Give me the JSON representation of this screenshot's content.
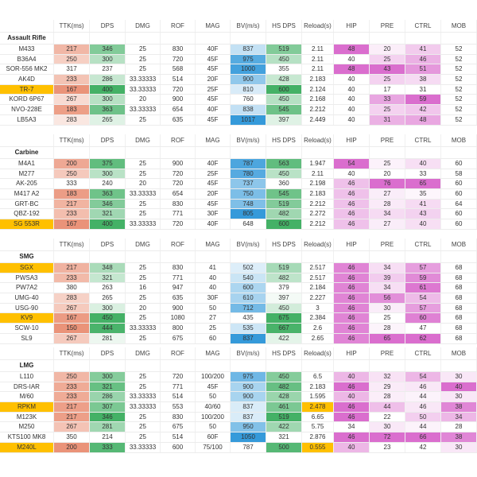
{
  "columns": [
    "TTK(ms)",
    "DPS",
    "DMG",
    "ROF",
    "MAG",
    "BV(m/s)",
    "HS DPS",
    "Reload(s)",
    "HIP",
    "PRE",
    "CTRL",
    "MOB"
  ],
  "colors": {
    "ttk": "#e8876a",
    "dps": "#2fa855",
    "bv": "#1f8fd6",
    "hs": "#2fa855",
    "stat": "#d65ec8",
    "highlight": "#ffc000"
  },
  "sections": [
    {
      "title": "Assault Rifle",
      "rows": [
        [
          "M433",
          "217",
          "346",
          "25",
          "830",
          "40F",
          "837",
          "519",
          "2.11",
          "48",
          "20",
          "41",
          "52"
        ],
        [
          "B36A4",
          "250",
          "300",
          "25",
          "720",
          "45F",
          "975",
          "450",
          "2.11",
          "40",
          "25",
          "46",
          "52"
        ],
        [
          "SOR-556 MK2",
          "317",
          "237",
          "25",
          "568",
          "45F",
          "1000",
          "355",
          "2.11",
          "48",
          "43",
          "51",
          "52"
        ],
        [
          "AK4D",
          "233",
          "286",
          "33.33333",
          "514",
          "20F",
          "900",
          "428",
          "2.183",
          "40",
          "25",
          "38",
          "52"
        ],
        [
          "TR-7",
          "167",
          "400",
          "33.33333",
          "720",
          "25F",
          "810",
          "600",
          "2.124",
          "40",
          "17",
          "31",
          "52"
        ],
        [
          "KORD 6P67",
          "267",
          "300",
          "20",
          "900",
          "45F",
          "760",
          "450",
          "2.168",
          "40",
          "33",
          "59",
          "52"
        ],
        [
          "NVO-228E",
          "183",
          "363",
          "33.33333",
          "654",
          "40F",
          "838",
          "545",
          "2.212",
          "40",
          "25",
          "42",
          "52"
        ],
        [
          "LB5A3",
          "283",
          "265",
          "25",
          "635",
          "45F",
          "1017",
          "397",
          "2.449",
          "40",
          "31",
          "48",
          "52"
        ]
      ],
      "highlighted": [
        "TR-7"
      ],
      "reload_highlighted": []
    },
    {
      "title": "Carbine",
      "rows": [
        [
          "M4A1",
          "200",
          "375",
          "25",
          "900",
          "40F",
          "787",
          "563",
          "1.947",
          "54",
          "25",
          "40",
          "60"
        ],
        [
          "M277",
          "250",
          "300",
          "25",
          "720",
          "25F",
          "780",
          "450",
          "2.11",
          "40",
          "20",
          "33",
          "58"
        ],
        [
          "AK-205",
          "333",
          "240",
          "20",
          "720",
          "45F",
          "737",
          "360",
          "2.198",
          "46",
          "76",
          "65",
          "60"
        ],
        [
          "M417 A2",
          "183",
          "363",
          "33.33333",
          "654",
          "20F",
          "750",
          "545",
          "2.183",
          "46",
          "27",
          "35",
          "60"
        ],
        [
          "GRT-BC",
          "217",
          "346",
          "25",
          "830",
          "45F",
          "748",
          "519",
          "2.212",
          "46",
          "28",
          "41",
          "64"
        ],
        [
          "QBZ-192",
          "233",
          "321",
          "25",
          "771",
          "30F",
          "805",
          "482",
          "2.272",
          "46",
          "34",
          "43",
          "60"
        ],
        [
          "SG 553R",
          "167",
          "400",
          "33.33333",
          "720",
          "40F",
          "648",
          "600",
          "2.212",
          "46",
          "27",
          "40",
          "60"
        ]
      ],
      "highlighted": [
        "SG 553R"
      ],
      "reload_highlighted": []
    },
    {
      "title": "SMG",
      "rows": [
        [
          "SGX",
          "217",
          "348",
          "25",
          "830",
          "41",
          "502",
          "519",
          "2.517",
          "46",
          "34",
          "57",
          "68"
        ],
        [
          "PWSA3",
          "233",
          "321",
          "25",
          "771",
          "40",
          "540",
          "482",
          "2.517",
          "46",
          "39",
          "59",
          "68"
        ],
        [
          "PW7A2",
          "380",
          "263",
          "16",
          "947",
          "40",
          "600",
          "379",
          "2.184",
          "46",
          "34",
          "61",
          "68"
        ],
        [
          "UMG-40",
          "283",
          "265",
          "25",
          "635",
          "30F",
          "610",
          "397",
          "2.227",
          "46",
          "56",
          "54",
          "68"
        ],
        [
          "USG-90",
          "267",
          "300",
          "20",
          "900",
          "50",
          "712",
          "450",
          "3",
          "46",
          "30",
          "57",
          "68"
        ],
        [
          "KV9",
          "167",
          "450",
          "25",
          "1080",
          "27",
          "435",
          "675",
          "2.384",
          "46",
          "25",
          "60",
          "68"
        ],
        [
          "SCW-10",
          "150",
          "444",
          "33.33333",
          "800",
          "25",
          "535",
          "667",
          "2.6",
          "46",
          "28",
          "47",
          "68"
        ],
        [
          "SL9",
          "267",
          "281",
          "25",
          "675",
          "60",
          "837",
          "422",
          "2.65",
          "46",
          "65",
          "62",
          "68"
        ]
      ],
      "highlighted": [
        "SGX",
        "KV9"
      ],
      "reload_highlighted": []
    },
    {
      "title": "LMG",
      "rows": [
        [
          "L110",
          "250",
          "300",
          "25",
          "720",
          "100/200",
          "975",
          "450",
          "6.5",
          "40",
          "32",
          "54",
          "30"
        ],
        [
          "DRS-IAR",
          "233",
          "321",
          "25",
          "771",
          "45F",
          "900",
          "482",
          "2.183",
          "46",
          "29",
          "46",
          "40"
        ],
        [
          "M/60",
          "233",
          "286",
          "33.33333",
          "514",
          "50",
          "900",
          "428",
          "1.595",
          "40",
          "28",
          "44",
          "30"
        ],
        [
          "RPKM",
          "217",
          "307",
          "33.33333",
          "553",
          "40/60",
          "837",
          "461",
          "2.478",
          "46",
          "44",
          "46",
          "38"
        ],
        [
          "M123K",
          "217",
          "346",
          "25",
          "830",
          "100/200",
          "837",
          "519",
          "6.65",
          "46",
          "22",
          "50",
          "34"
        ],
        [
          "M250",
          "267",
          "281",
          "25",
          "675",
          "50",
          "950",
          "422",
          "5.75",
          "34",
          "30",
          "44",
          "28"
        ],
        [
          "KTS100 MK8",
          "350",
          "214",
          "25",
          "514",
          "60F",
          "1050",
          "321",
          "2.876",
          "46",
          "72",
          "66",
          "38"
        ],
        [
          "M240L",
          "200",
          "333",
          "33.33333",
          "600",
          "75/100",
          "787",
          "500",
          "0.555",
          "40",
          "23",
          "42",
          "30"
        ]
      ],
      "highlighted": [
        "RPKM",
        "M240L"
      ],
      "reload_highlighted": [
        "RPKM",
        "M240L"
      ]
    }
  ]
}
